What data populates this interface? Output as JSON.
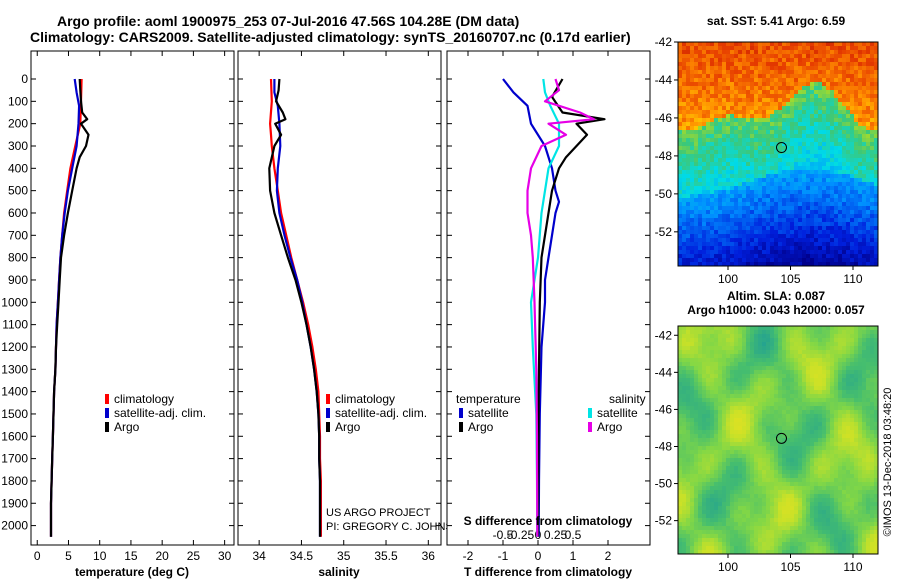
{
  "header": {
    "title_line1": "Argo profile: aoml 1900975_253 07-Jul-2016 47.56S 104.28E (DM data)",
    "title_line2": "Climatology: CARS2009. Satellite-adjusted climatology: synTS_20160707.nc (0.17d earlier)"
  },
  "colors": {
    "climatology": "#ff0000",
    "satellite": "#0000cc",
    "argo": "#000000",
    "cyan": "#00e5e5",
    "magenta": "#e600e6"
  },
  "chart_data": [
    {
      "type": "line",
      "id": "temperature",
      "xlabel": "temperature (deg C)",
      "ylabel": "",
      "xlim": [
        -1,
        31.5
      ],
      "ylim": [
        2050,
        0
      ],
      "xticks": [
        0,
        5,
        10,
        15,
        20,
        25,
        30
      ],
      "xtick_labels": [
        "0",
        "5",
        "10",
        "15",
        "20",
        "25",
        "30"
      ],
      "yticks": [
        0,
        100,
        200,
        300,
        400,
        500,
        600,
        700,
        800,
        900,
        1000,
        1100,
        1200,
        1300,
        1400,
        1500,
        1600,
        1700,
        1800,
        1900,
        2000
      ],
      "ytick_labels": [
        "0",
        "100",
        "200",
        "300",
        "400",
        "500",
        "600",
        "700",
        "800",
        "900",
        "1000",
        "1100",
        "1200",
        "1300",
        "1400",
        "1500",
        "1600",
        "1700",
        "1800",
        "1900",
        "2000"
      ],
      "legend": [
        "climatology",
        "satellite-adj. clim.",
        "Argo"
      ],
      "series": [
        {
          "name": "climatology",
          "color": "#ff0000",
          "points": [
            [
              7.1,
              0
            ],
            [
              7.0,
              100
            ],
            [
              6.9,
              200
            ],
            [
              6.1,
              300
            ],
            [
              5.3,
              400
            ],
            [
              4.8,
              500
            ],
            [
              4.3,
              600
            ],
            [
              4.0,
              700
            ],
            [
              3.7,
              800
            ],
            [
              3.5,
              900
            ],
            [
              3.3,
              1000
            ],
            [
              3.1,
              1100
            ],
            [
              3.0,
              1200
            ],
            [
              2.9,
              1300
            ],
            [
              2.7,
              1400
            ],
            [
              2.6,
              1500
            ],
            [
              2.5,
              1600
            ],
            [
              2.4,
              1700
            ],
            [
              2.3,
              1800
            ],
            [
              2.2,
              1900
            ],
            [
              2.2,
              2050
            ]
          ]
        },
        {
          "name": "satellite-adj. clim.",
          "color": "#0000cc",
          "points": [
            [
              6.0,
              0
            ],
            [
              6.3,
              60
            ],
            [
              6.7,
              120
            ],
            [
              6.6,
              200
            ],
            [
              6.3,
              300
            ],
            [
              5.6,
              400
            ],
            [
              4.9,
              500
            ],
            [
              4.4,
              600
            ],
            [
              4.0,
              700
            ],
            [
              3.7,
              800
            ],
            [
              3.5,
              900
            ],
            [
              3.3,
              1000
            ],
            [
              3.1,
              1100
            ],
            [
              3.0,
              1200
            ],
            [
              2.9,
              1300
            ],
            [
              2.7,
              1400
            ],
            [
              2.6,
              1500
            ],
            [
              2.5,
              1600
            ],
            [
              2.4,
              1700
            ],
            [
              2.3,
              1800
            ],
            [
              2.2,
              1900
            ],
            [
              2.2,
              2050
            ]
          ]
        },
        {
          "name": "Argo",
          "color": "#000000",
          "points": [
            [
              6.8,
              0
            ],
            [
              6.9,
              50
            ],
            [
              7.0,
              100
            ],
            [
              7.2,
              150
            ],
            [
              8.0,
              180
            ],
            [
              7.0,
              200
            ],
            [
              8.2,
              250
            ],
            [
              7.8,
              300
            ],
            [
              6.8,
              350
            ],
            [
              6.3,
              400
            ],
            [
              5.6,
              500
            ],
            [
              4.9,
              600
            ],
            [
              4.3,
              700
            ],
            [
              3.8,
              800
            ],
            [
              3.6,
              900
            ],
            [
              3.4,
              1000
            ],
            [
              3.2,
              1100
            ],
            [
              3.0,
              1200
            ],
            [
              2.9,
              1300
            ],
            [
              2.7,
              1400
            ],
            [
              2.6,
              1500
            ],
            [
              2.5,
              1600
            ],
            [
              2.4,
              1700
            ],
            [
              2.3,
              1800
            ],
            [
              2.2,
              1900
            ],
            [
              2.2,
              2050
            ]
          ]
        }
      ]
    },
    {
      "type": "line",
      "id": "salinity",
      "xlabel": "salinity",
      "ylabel": "",
      "xlim": [
        33.75,
        36.15
      ],
      "ylim": [
        2050,
        0
      ],
      "xticks": [
        34,
        34.5,
        35,
        35.5,
        36
      ],
      "xtick_labels": [
        "34",
        "34.5",
        "35",
        "35.5",
        "36"
      ],
      "legend": [
        "climatology",
        "satellite-adj. clim.",
        "Argo"
      ],
      "annotation": [
        "US ARGO PROJECT",
        "PI: GREGORY C. JOHNSON"
      ],
      "series": [
        {
          "name": "climatology",
          "color": "#ff0000",
          "points": [
            [
              34.14,
              0
            ],
            [
              34.15,
              100
            ],
            [
              34.13,
              200
            ],
            [
              34.14,
              250
            ],
            [
              34.15,
              300
            ],
            [
              34.18,
              400
            ],
            [
              34.22,
              500
            ],
            [
              34.26,
              600
            ],
            [
              34.32,
              700
            ],
            [
              34.38,
              800
            ],
            [
              34.45,
              900
            ],
            [
              34.52,
              1000
            ],
            [
              34.58,
              1100
            ],
            [
              34.63,
              1200
            ],
            [
              34.67,
              1300
            ],
            [
              34.7,
              1400
            ],
            [
              34.71,
              1500
            ],
            [
              34.72,
              1600
            ],
            [
              34.72,
              1700
            ],
            [
              34.73,
              1800
            ],
            [
              34.73,
              1900
            ],
            [
              34.73,
              2050
            ]
          ]
        },
        {
          "name": "satellite-adj. clim.",
          "color": "#0000cc",
          "points": [
            [
              34.18,
              0
            ],
            [
              34.18,
              60
            ],
            [
              34.22,
              120
            ],
            [
              34.24,
              200
            ],
            [
              34.25,
              300
            ],
            [
              34.22,
              400
            ],
            [
              34.21,
              500
            ],
            [
              34.24,
              600
            ],
            [
              34.3,
              700
            ],
            [
              34.37,
              800
            ],
            [
              34.45,
              900
            ],
            [
              34.51,
              1000
            ],
            [
              34.56,
              1100
            ],
            [
              34.61,
              1200
            ],
            [
              34.65,
              1300
            ],
            [
              34.68,
              1400
            ],
            [
              34.7,
              1500
            ],
            [
              34.71,
              1600
            ],
            [
              34.71,
              1700
            ],
            [
              34.72,
              1800
            ],
            [
              34.72,
              1900
            ],
            [
              34.72,
              2050
            ]
          ]
        },
        {
          "name": "Argo",
          "color": "#000000",
          "points": [
            [
              34.24,
              0
            ],
            [
              34.23,
              50
            ],
            [
              34.2,
              100
            ],
            [
              34.28,
              150
            ],
            [
              34.31,
              180
            ],
            [
              34.19,
              200
            ],
            [
              34.26,
              250
            ],
            [
              34.18,
              300
            ],
            [
              34.12,
              400
            ],
            [
              34.13,
              500
            ],
            [
              34.18,
              600
            ],
            [
              34.26,
              700
            ],
            [
              34.34,
              800
            ],
            [
              34.43,
              900
            ],
            [
              34.5,
              1000
            ],
            [
              34.56,
              1100
            ],
            [
              34.61,
              1200
            ],
            [
              34.65,
              1300
            ],
            [
              34.68,
              1400
            ],
            [
              34.7,
              1500
            ],
            [
              34.71,
              1600
            ],
            [
              34.71,
              1700
            ],
            [
              34.72,
              1800
            ],
            [
              34.72,
              1900
            ],
            [
              34.72,
              2050
            ]
          ]
        }
      ]
    },
    {
      "type": "line",
      "id": "differences",
      "xlabel": "T difference from climatology",
      "top_label": "S difference from climatology",
      "xlim": [
        -2.6,
        3.2
      ],
      "ylim": [
        2050,
        0
      ],
      "xticks": [
        -2,
        -1,
        0,
        1,
        2
      ],
      "xtick_labels": [
        "-2",
        "-1",
        "0",
        "1",
        "2"
      ],
      "top_tick_values": [
        -1,
        -0.5,
        0,
        0.5,
        1
      ],
      "top_tick_labels": [
        "-0.5",
        "-0.25",
        "0",
        "0.25",
        "0.5"
      ],
      "legend_temperature": {
        "title": "temperature",
        "items": [
          "satellite",
          "Argo"
        ]
      },
      "legend_salinity": {
        "title": "salinity",
        "items": [
          "satellite",
          "Argo"
        ]
      },
      "series": [
        {
          "name": "temperature satellite",
          "color": "#0000cc",
          "points": [
            [
              -1.0,
              0
            ],
            [
              -0.7,
              60
            ],
            [
              -0.3,
              120
            ],
            [
              -0.2,
              200
            ],
            [
              0.2,
              300
            ],
            [
              0.4,
              400
            ],
            [
              0.5,
              500
            ],
            [
              0.6,
              550
            ],
            [
              0.5,
              600
            ],
            [
              0.4,
              700
            ],
            [
              0.3,
              800
            ],
            [
              0.2,
              900
            ],
            [
              0.2,
              1000
            ],
            [
              0.1,
              1200
            ],
            [
              0.05,
              1500
            ],
            [
              0.03,
              1800
            ],
            [
              0.02,
              2050
            ]
          ]
        },
        {
          "name": "temperature Argo",
          "color": "#000000",
          "points": [
            [
              0.7,
              0
            ],
            [
              0.4,
              80
            ],
            [
              0.7,
              150
            ],
            [
              1.9,
              180
            ],
            [
              1.1,
              200
            ],
            [
              1.4,
              250
            ],
            [
              0.8,
              350
            ],
            [
              0.6,
              400
            ],
            [
              0.4,
              500
            ],
            [
              0.3,
              600
            ],
            [
              0.2,
              700
            ],
            [
              0.1,
              800
            ],
            [
              0.05,
              1000
            ],
            [
              0.02,
              1400
            ],
            [
              0.0,
              2050
            ]
          ]
        },
        {
          "name": "salinity satellite",
          "color": "#00e5e5",
          "points": [
            [
              0.15,
              0
            ],
            [
              0.2,
              60
            ],
            [
              0.35,
              120
            ],
            [
              0.6,
              200
            ],
            [
              0.6,
              300
            ],
            [
              0.3,
              400
            ],
            [
              0.2,
              500
            ],
            [
              0.1,
              600
            ],
            [
              0.0,
              800
            ],
            [
              -0.1,
              900
            ],
            [
              -0.2,
              1000
            ],
            [
              -0.15,
              1200
            ],
            [
              -0.05,
              1500
            ],
            [
              -0.03,
              1800
            ],
            [
              -0.02,
              2050
            ]
          ]
        },
        {
          "name": "salinity Argo",
          "color": "#e600e6",
          "points": [
            [
              0.5,
              0
            ],
            [
              0.6,
              50
            ],
            [
              0.2,
              100
            ],
            [
              1.2,
              150
            ],
            [
              1.6,
              180
            ],
            [
              0.3,
              200
            ],
            [
              0.8,
              250
            ],
            [
              0.1,
              300
            ],
            [
              -0.2,
              400
            ],
            [
              -0.3,
              500
            ],
            [
              -0.3,
              600
            ],
            [
              -0.2,
              700
            ],
            [
              -0.15,
              800
            ],
            [
              -0.1,
              1000
            ],
            [
              -0.05,
              1300
            ],
            [
              -0.03,
              1600
            ],
            [
              -0.02,
              2050
            ]
          ]
        }
      ]
    },
    {
      "type": "heatmap",
      "id": "sst_map",
      "title": "sat. SST: 5.41 Argo: 6.59",
      "xlim": [
        96,
        112
      ],
      "ylim": [
        -53.8,
        -42
      ],
      "xticks": [
        100,
        105,
        110
      ],
      "xtick_labels": [
        "100",
        "105",
        "110"
      ],
      "yticks": [
        -42,
        -44,
        -46,
        -48,
        -50,
        -52
      ],
      "ytick_labels": [
        "-42",
        "-44",
        "-46",
        "-48",
        "-50",
        "-52"
      ],
      "marker": [
        104.28,
        -47.56
      ]
    },
    {
      "type": "heatmap",
      "id": "sla_map",
      "title_line1": "Altim. SLA: 0.087",
      "title_line2": "Argo h1000: 0.043 h2000: 0.057",
      "xlim": [
        96,
        112
      ],
      "ylim": [
        -53.8,
        -41.5
      ],
      "xticks": [
        100,
        105,
        110
      ],
      "xtick_labels": [
        "100",
        "105",
        "110"
      ],
      "yticks": [
        -42,
        -44,
        -46,
        -48,
        -50,
        -52
      ],
      "ytick_labels": [
        "-42",
        "-44",
        "-46",
        "-48",
        "-50",
        "-52"
      ],
      "marker": [
        104.28,
        -47.56
      ],
      "side_label": "©IMOS 13-Dec-2018 03:48:20"
    }
  ]
}
